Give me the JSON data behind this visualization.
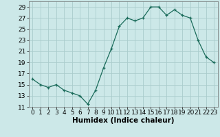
{
  "x": [
    0,
    1,
    2,
    3,
    4,
    5,
    6,
    7,
    8,
    9,
    10,
    11,
    12,
    13,
    14,
    15,
    16,
    17,
    18,
    19,
    20,
    21,
    22,
    23
  ],
  "y": [
    16.0,
    15.0,
    14.5,
    15.0,
    14.0,
    13.5,
    13.0,
    11.5,
    14.0,
    18.0,
    21.5,
    25.5,
    27.0,
    26.5,
    27.0,
    29.0,
    29.0,
    27.5,
    28.5,
    27.5,
    27.0,
    23.0,
    20.0,
    19.0
  ],
  "xlabel": "Humidex (Indice chaleur)",
  "xlim": [
    -0.5,
    23.5
  ],
  "ylim": [
    11,
    30
  ],
  "yticks": [
    11,
    13,
    15,
    17,
    19,
    21,
    23,
    25,
    27,
    29
  ],
  "xticks": [
    0,
    1,
    2,
    3,
    4,
    5,
    6,
    7,
    8,
    9,
    10,
    11,
    12,
    13,
    14,
    15,
    16,
    17,
    18,
    19,
    20,
    21,
    22,
    23
  ],
  "line_color": "#1a6b5a",
  "marker": "+",
  "bg_color": "#cce8e8",
  "grid_color": "#aacccc",
  "tick_fontsize": 6.5,
  "xlabel_fontsize": 7.5
}
